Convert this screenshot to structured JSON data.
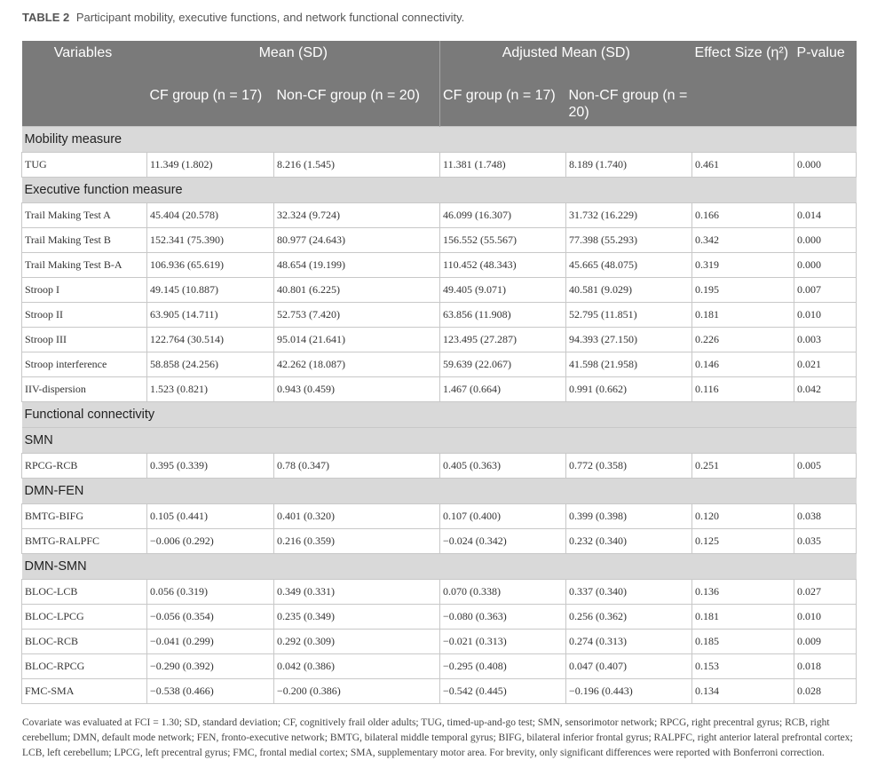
{
  "caption": {
    "label": "TABLE 2",
    "text": "Participant mobility, executive functions, and network functional connectivity."
  },
  "header": {
    "variables": "Variables",
    "mean_sd": "Mean (SD)",
    "adjusted_mean_sd": "Adjusted Mean (SD)",
    "effect_size": "Effect Size (η²)",
    "p_value": "P-value",
    "cf_group": "CF group (n = 17)",
    "non_cf_group": "Non-CF group (n = 20)",
    "cf_group_adj": "CF group (n = 17)",
    "non_cf_group_adj": "Non-CF group (n = 20)"
  },
  "sections": [
    {
      "title": "Mobility measure",
      "rows": [
        [
          "TUG",
          "11.349 (1.802)",
          "8.216 (1.545)",
          "11.381 (1.748)",
          "8.189 (1.740)",
          "0.461",
          "0.000"
        ]
      ]
    },
    {
      "title": "Executive function measure",
      "rows": [
        [
          "Trail Making Test A",
          "45.404 (20.578)",
          "32.324 (9.724)",
          "46.099 (16.307)",
          "31.732 (16.229)",
          "0.166",
          "0.014"
        ],
        [
          "Trail Making Test B",
          "152.341 (75.390)",
          "80.977 (24.643)",
          "156.552 (55.567)",
          "77.398 (55.293)",
          "0.342",
          "0.000"
        ],
        [
          "Trail Making Test B-A",
          "106.936 (65.619)",
          "48.654 (19.199)",
          "110.452 (48.343)",
          "45.665 (48.075)",
          "0.319",
          "0.000"
        ],
        [
          "Stroop I",
          "49.145 (10.887)",
          "40.801 (6.225)",
          "49.405 (9.071)",
          "40.581 (9.029)",
          "0.195",
          "0.007"
        ],
        [
          "Stroop II",
          "63.905 (14.711)",
          "52.753 (7.420)",
          "63.856 (11.908)",
          "52.795 (11.851)",
          "0.181",
          "0.010"
        ],
        [
          "Stroop III",
          "122.764 (30.514)",
          "95.014 (21.641)",
          "123.495 (27.287)",
          "94.393 (27.150)",
          "0.226",
          "0.003"
        ],
        [
          "Stroop interference",
          "58.858 (24.256)",
          "42.262 (18.087)",
          "59.639 (22.067)",
          "41.598 (21.958)",
          "0.146",
          "0.021"
        ],
        [
          "IIV-dispersion",
          "1.523 (0.821)",
          "0.943 (0.459)",
          "1.467 (0.664)",
          "0.991 (0.662)",
          "0.116",
          "0.042"
        ]
      ]
    },
    {
      "title": "Functional connectivity",
      "rows": []
    },
    {
      "title": "SMN",
      "rows": [
        [
          "RPCG-RCB",
          "0.395 (0.339)",
          "0.78 (0.347)",
          "0.405 (0.363)",
          "0.772 (0.358)",
          "0.251",
          "0.005"
        ]
      ]
    },
    {
      "title": "DMN-FEN",
      "rows": [
        [
          "BMTG-BIFG",
          "0.105 (0.441)",
          "0.401 (0.320)",
          "0.107 (0.400)",
          "0.399 (0.398)",
          "0.120",
          "0.038"
        ],
        [
          "BMTG-RALPFC",
          "−0.006 (0.292)",
          "0.216 (0.359)",
          "−0.024 (0.342)",
          "0.232 (0.340)",
          "0.125",
          "0.035"
        ]
      ]
    },
    {
      "title": "DMN-SMN",
      "rows": [
        [
          "BLOC-LCB",
          "0.056 (0.319)",
          "0.349 (0.331)",
          "0.070 (0.338)",
          "0.337 (0.340)",
          "0.136",
          "0.027"
        ],
        [
          "BLOC-LPCG",
          "−0.056 (0.354)",
          "0.235 (0.349)",
          "−0.080 (0.363)",
          "0.256 (0.362)",
          "0.181",
          "0.010"
        ],
        [
          "BLOC-RCB",
          "−0.041 (0.299)",
          "0.292 (0.309)",
          "−0.021 (0.313)",
          "0.274 (0.313)",
          "0.185",
          "0.009"
        ],
        [
          "BLOC-RPCG",
          "−0.290 (0.392)",
          "0.042 (0.386)",
          "−0.295 (0.408)",
          "0.047 (0.407)",
          "0.153",
          "0.018"
        ],
        [
          "FMC-SMA",
          "−0.538 (0.466)",
          "−0.200 (0.386)",
          "−0.542 (0.445)",
          "−0.196 (0.443)",
          "0.134",
          "0.028"
        ]
      ]
    }
  ],
  "footnote": "Covariate was evaluated at FCI = 1.30; SD, standard deviation; CF, cognitively frail older adults; TUG, timed-up-and-go test; SMN, sensorimotor network; RPCG, right precentral gyrus; RCB, right cerebellum; DMN, default mode network; FEN, fronto-executive network; BMTG, bilateral middle temporal gyrus; BIFG, bilateral inferior frontal gyrus; RALPFC, right anterior lateral prefrontal cortex; LCB, left cerebellum; LPCG, left precentral gyrus; FMC, frontal medial cortex; SMA, supplementary motor area. For brevity, only significant differences were reported with Bonferroni correction."
}
